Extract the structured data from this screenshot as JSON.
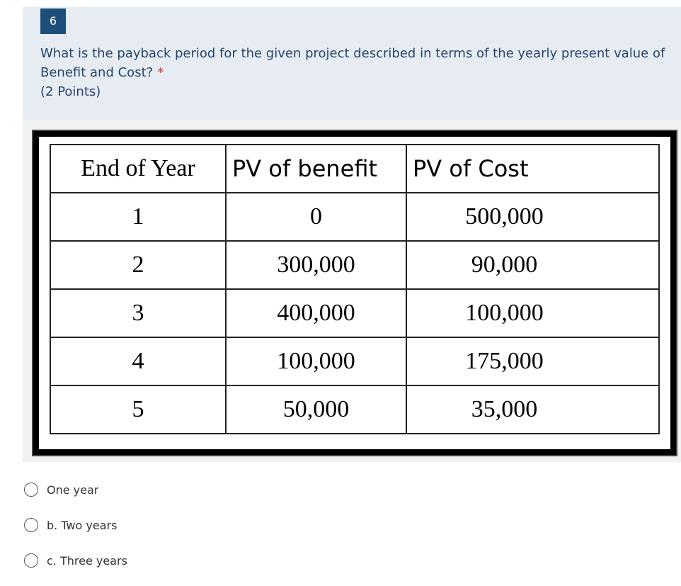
{
  "question": {
    "number": "6",
    "text": "What is the payback period for the given project described in terms of the yearly present value of Benefit and Cost?",
    "required": "*",
    "points": "(2 Points)"
  },
  "table": {
    "header": [
      "End of Year",
      "PV of benefit",
      "PV of Cost"
    ],
    "rows": [
      [
        "1",
        "0",
        "500,000"
      ],
      [
        "2",
        "300,000",
        "90,000"
      ],
      [
        "3",
        "400,000",
        "100,000"
      ],
      [
        "4",
        "100,000",
        "175,000"
      ],
      [
        "5",
        "50,000",
        "35,000"
      ]
    ]
  },
  "options": [
    "One year",
    "b. Two years",
    "c. Three years"
  ]
}
